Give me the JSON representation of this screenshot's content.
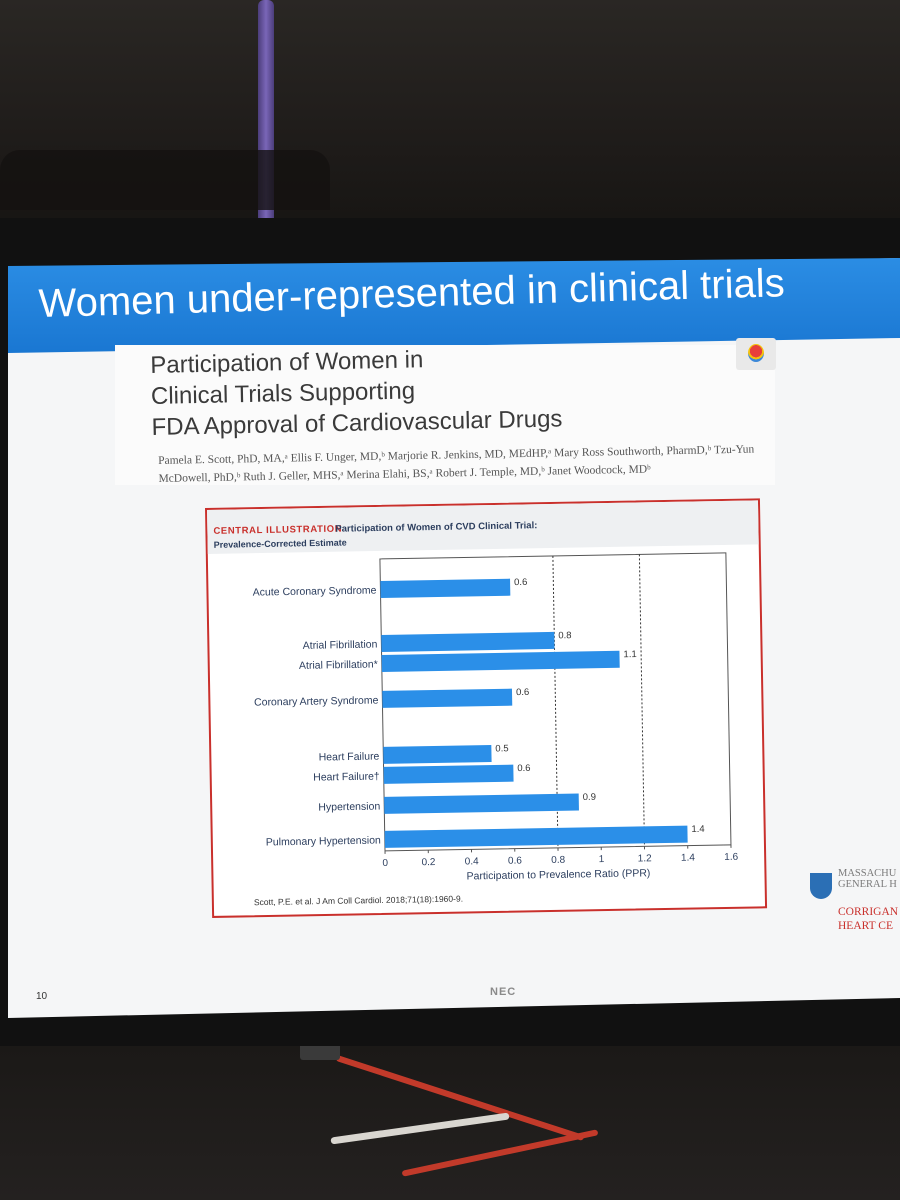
{
  "slide": {
    "title": "Women under-represented in clinical trials",
    "number": "10",
    "monitor_brand": "NEC"
  },
  "paper": {
    "title": "Participation of Women in\nClinical Trials Supporting\nFDA Approval of Cardiovascular Drugs",
    "authors": "Pamela E. Scott, PhD, MA,ᵃ Ellis F. Unger, MD,ᵇ Marjorie R. Jenkins, MD, MEdHP,ᵃ Mary Ross Southworth, PharmD,ᵇ Tzu-Yun McDowell, PhD,ᵇ Ruth J. Geller, MHS,ᵃ Merina Elahi, BS,ᵃ Robert J. Temple, MD,ᵇ Janet Woodcock, MDᵇ"
  },
  "illustration": {
    "label": "CENTRAL ILLUSTRATION",
    "heading": "Participation of Women of CVD Clinical Trial:",
    "subheading": "Prevalence-Corrected Estimate",
    "citation": "Scott, P.E. et al. J Am Coll Cardiol. 2018;71(18):1960-9."
  },
  "logo": {
    "mgh": "MASSACHU\nGENERAL H",
    "corrigan": "CORRIGAN\nHEART CE"
  },
  "chart_data": {
    "type": "bar",
    "orientation": "horizontal",
    "categories": [
      "Acute Coronary Syndrome",
      "Atrial Fibrillation",
      "Atrial Fibrillation*",
      "Coronary Artery Syndrome",
      "Heart Failure",
      "Heart Failure†",
      "Hypertension",
      "Pulmonary Hypertension"
    ],
    "values": [
      0.6,
      0.8,
      1.1,
      0.6,
      0.5,
      0.6,
      0.9,
      1.4
    ],
    "data_labels": [
      "0.6",
      "0.8",
      "1.1",
      "0.6",
      "0.5",
      "0.6",
      "0.9",
      "1.4"
    ],
    "xlabel": "Participation to Prevalence Ratio (PPR)",
    "xlim": [
      0,
      1.6
    ],
    "xticks": [
      "0",
      "0.2",
      "0.4",
      "0.6",
      "0.8",
      "1",
      "1.2",
      "1.4",
      "1.6"
    ],
    "reference_lines": [
      0.8,
      1.2
    ],
    "bar_color": "#2b8fe8"
  }
}
